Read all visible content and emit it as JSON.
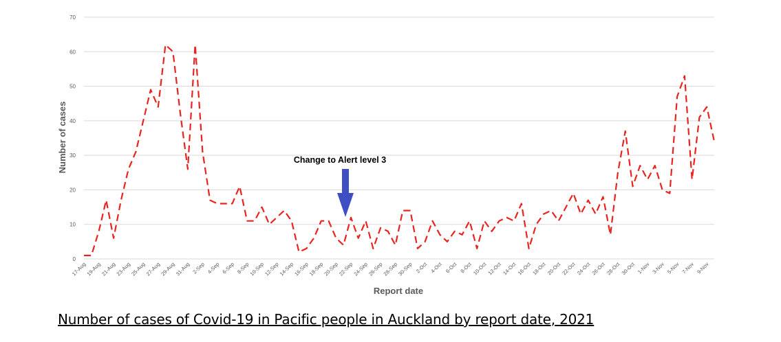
{
  "caption": "Number of cases of Covid-19 in Pacific people in Auckland by report date, 2021",
  "colors": {
    "line": "#e8241f",
    "arrow": "#3f4fc3",
    "grid": "#d9d9d9",
    "tick": "#595959"
  },
  "chart_data": {
    "type": "line",
    "title": "",
    "xlabel": "Report date",
    "ylabel": "Number of cases",
    "ylim": [
      0,
      70
    ],
    "yticks": [
      0,
      10,
      20,
      30,
      40,
      50,
      60,
      70
    ],
    "grid": true,
    "line_style": "dashed",
    "x_tick_labels": [
      "17-Aug",
      "19-Aug",
      "21-Aug",
      "23-Aug",
      "25-Aug",
      "27-Aug",
      "29-Aug",
      "31-Aug",
      "2-Sep",
      "4-Sep",
      "6-Sep",
      "8-Sep",
      "10-Sep",
      "12-Sep",
      "14-Sep",
      "16-Sep",
      "18-Sep",
      "20-Sep",
      "22-Sep",
      "24-Sep",
      "26-Sep",
      "28-Sep",
      "30-Sep",
      "2-Oct",
      "4-Oct",
      "6-Oct",
      "8-Oct",
      "10-Oct",
      "12-Oct",
      "14-Oct",
      "16-Oct",
      "18-Oct",
      "20-Oct",
      "22-Oct",
      "24-Oct",
      "26-Oct",
      "28-Oct",
      "30-Oct",
      "1-Nov",
      "3-Nov",
      "5-Nov",
      "7-Nov",
      "9-Nov"
    ],
    "series": [
      {
        "values": [
          1,
          1,
          8,
          17,
          6,
          17,
          26,
          31,
          40,
          49,
          44,
          62,
          60,
          42,
          26,
          62,
          31,
          17,
          16,
          16,
          16,
          21,
          11,
          11,
          15,
          10,
          12,
          14,
          11,
          2,
          3,
          6,
          11,
          11,
          6,
          4,
          12,
          6,
          11,
          3,
          9,
          8,
          4,
          14,
          14,
          3,
          5,
          11,
          7,
          5,
          8,
          7,
          11,
          3,
          11,
          8,
          11,
          12,
          11,
          16,
          3,
          10,
          13,
          14,
          11,
          15,
          19,
          13,
          17,
          13,
          18,
          7,
          25,
          37,
          21,
          27,
          23,
          27,
          20,
          19,
          47,
          53,
          23,
          41,
          44,
          34
        ]
      }
    ],
    "annotations": [
      {
        "text": "Change to Alert level 3",
        "x_index": 35
      }
    ]
  }
}
